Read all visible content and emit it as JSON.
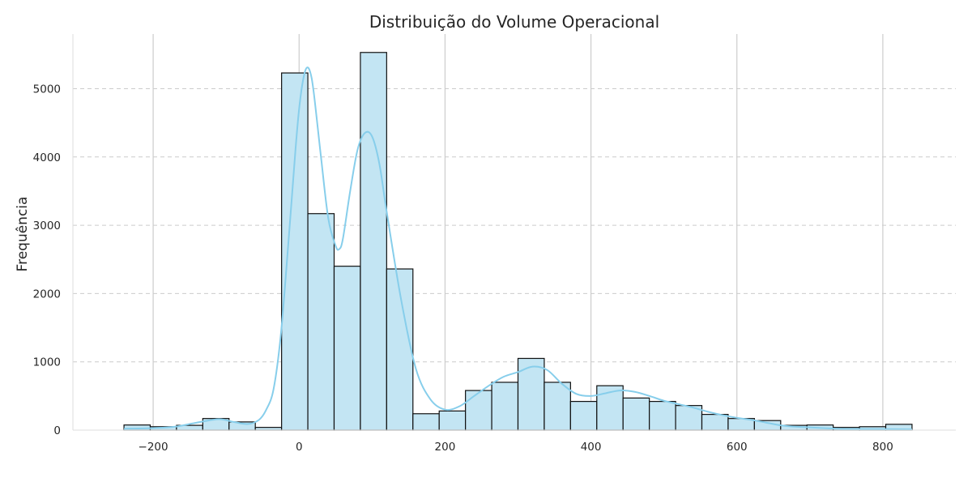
{
  "chart_data": {
    "type": "bar",
    "title": "Distribuição do Volume Operacional",
    "xlabel": "",
    "ylabel": "Frequência",
    "xlim": [
      -310,
      900
    ],
    "ylim": [
      0,
      5800
    ],
    "x_ticks": [
      -200,
      0,
      200,
      400,
      600,
      800
    ],
    "x_tick_labels": [
      "−200",
      "0",
      "200",
      "400",
      "600",
      "800"
    ],
    "y_ticks": [
      0,
      1000,
      2000,
      3000,
      4000,
      5000
    ],
    "y_tick_labels": [
      "0",
      "1000",
      "2000",
      "3000",
      "4000",
      "5000"
    ],
    "grid": {
      "x": "solid",
      "y": "dashed"
    },
    "bins": [
      {
        "x0": -240,
        "x1": -204,
        "count": 75
      },
      {
        "x0": -204,
        "x1": -168,
        "count": 50
      },
      {
        "x0": -168,
        "x1": -132,
        "count": 70
      },
      {
        "x0": -132,
        "x1": -96,
        "count": 170
      },
      {
        "x0": -96,
        "x1": -60,
        "count": 120
      },
      {
        "x0": -60,
        "x1": -24,
        "count": 40
      },
      {
        "x0": -24,
        "x1": 12,
        "count": 5230
      },
      {
        "x0": 12,
        "x1": 48,
        "count": 3170
      },
      {
        "x0": 48,
        "x1": 84,
        "count": 2400
      },
      {
        "x0": 84,
        "x1": 120,
        "count": 5530
      },
      {
        "x0": 120,
        "x1": 156,
        "count": 2360
      },
      {
        "x0": 156,
        "x1": 192,
        "count": 240
      },
      {
        "x0": 192,
        "x1": 228,
        "count": 280
      },
      {
        "x0": 228,
        "x1": 264,
        "count": 580
      },
      {
        "x0": 264,
        "x1": 300,
        "count": 700
      },
      {
        "x0": 300,
        "x1": 336,
        "count": 1050
      },
      {
        "x0": 336,
        "x1": 372,
        "count": 700
      },
      {
        "x0": 372,
        "x1": 408,
        "count": 420
      },
      {
        "x0": 408,
        "x1": 444,
        "count": 650
      },
      {
        "x0": 444,
        "x1": 480,
        "count": 470
      },
      {
        "x0": 480,
        "x1": 516,
        "count": 420
      },
      {
        "x0": 516,
        "x1": 552,
        "count": 360
      },
      {
        "x0": 552,
        "x1": 588,
        "count": 230
      },
      {
        "x0": 588,
        "x1": 624,
        "count": 170
      },
      {
        "x0": 624,
        "x1": 660,
        "count": 140
      },
      {
        "x0": 660,
        "x1": 696,
        "count": 70
      },
      {
        "x0": 696,
        "x1": 732,
        "count": 75
      },
      {
        "x0": 732,
        "x1": 768,
        "count": 40
      },
      {
        "x0": 768,
        "x1": 804,
        "count": 50
      },
      {
        "x0": 804,
        "x1": 840,
        "count": 85
      }
    ],
    "kde": {
      "x": [
        -240,
        -200,
        -170,
        -140,
        -110,
        -90,
        -70,
        -55,
        -45,
        -35,
        -25,
        -15,
        -5,
        0,
        5,
        10,
        15,
        20,
        30,
        40,
        50,
        55,
        60,
        70,
        80,
        90,
        100,
        110,
        120,
        140,
        160,
        180,
        200,
        220,
        240,
        260,
        280,
        300,
        320,
        340,
        360,
        380,
        400,
        420,
        440,
        460,
        480,
        500,
        520,
        540,
        560,
        580,
        600,
        620,
        640,
        660,
        680,
        700,
        740,
        780,
        840
      ],
      "y": [
        20,
        30,
        50,
        110,
        160,
        120,
        90,
        150,
        300,
        600,
        1400,
        2700,
        4100,
        4700,
        5100,
        5300,
        5250,
        4950,
        4000,
        3100,
        2700,
        2650,
        2800,
        3500,
        4100,
        4350,
        4300,
        3900,
        3200,
        1900,
        900,
        450,
        300,
        350,
        500,
        650,
        780,
        850,
        930,
        880,
        680,
        530,
        500,
        540,
        580,
        560,
        500,
        430,
        380,
        330,
        270,
        220,
        180,
        150,
        110,
        70,
        50,
        40,
        20,
        15,
        10
      ]
    },
    "colors": {
      "bar_fill": "#c3e5f3",
      "bar_edge": "#111111",
      "kde": "#87ceeb",
      "grid": "#cccccc"
    }
  }
}
